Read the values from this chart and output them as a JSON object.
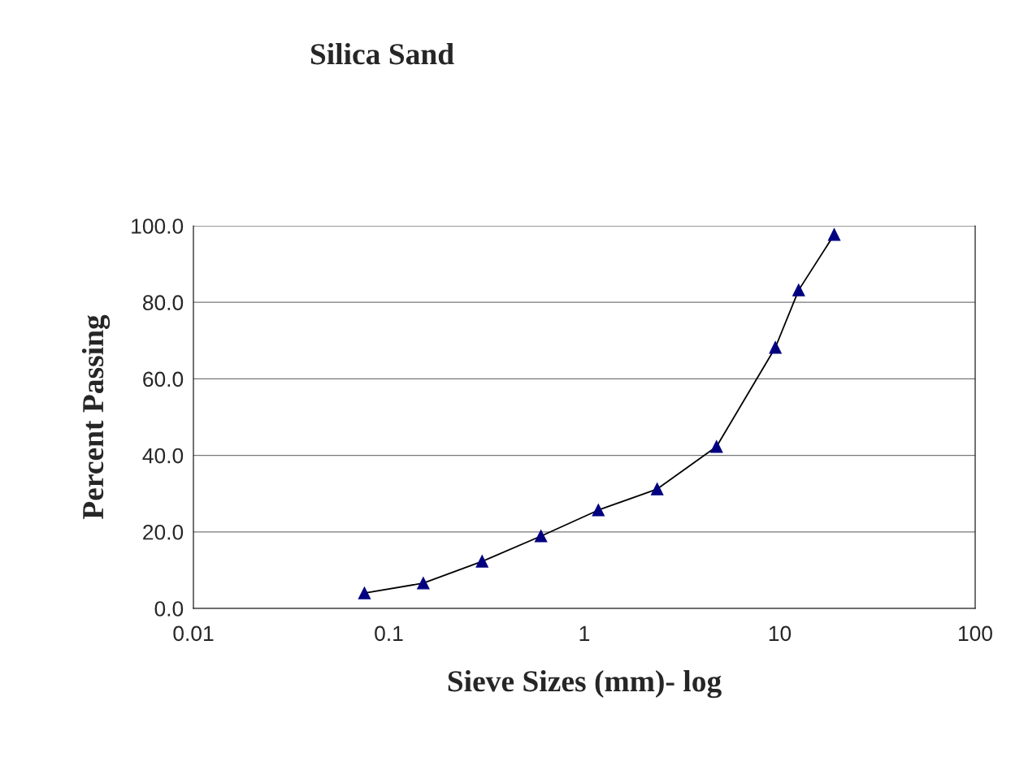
{
  "chart_data": {
    "type": "line",
    "title": "Silica Sand",
    "xlabel": "Sieve Sizes (mm)- log",
    "ylabel": "Percent Passing",
    "x": [
      0.075,
      0.15,
      0.3,
      0.6,
      1.18,
      2.36,
      4.75,
      9.5,
      12.5,
      19
    ],
    "series": [
      {
        "color": "#000080",
        "values": [
          4.0,
          6.6,
          12.3,
          18.9,
          25.7,
          31.2,
          42.3,
          68.2,
          83.2,
          97.7
        ]
      }
    ],
    "log": "x",
    "xlim": [
      0.01,
      100
    ],
    "xticks": [
      0.01,
      0.1,
      1,
      10,
      100
    ],
    "ylim": [
      0,
      100
    ],
    "yticks": [
      {
        "value": 0,
        "label": "0.0"
      },
      {
        "value": 20,
        "label": "20.0"
      },
      {
        "value": 40,
        "label": "40.0"
      },
      {
        "value": 60,
        "label": "60.0"
      },
      {
        "value": 80,
        "label": "80.0"
      },
      {
        "value": 100,
        "label": "100.0"
      }
    ],
    "grid": "y",
    "marker": "triangle",
    "line_style": "solid"
  }
}
